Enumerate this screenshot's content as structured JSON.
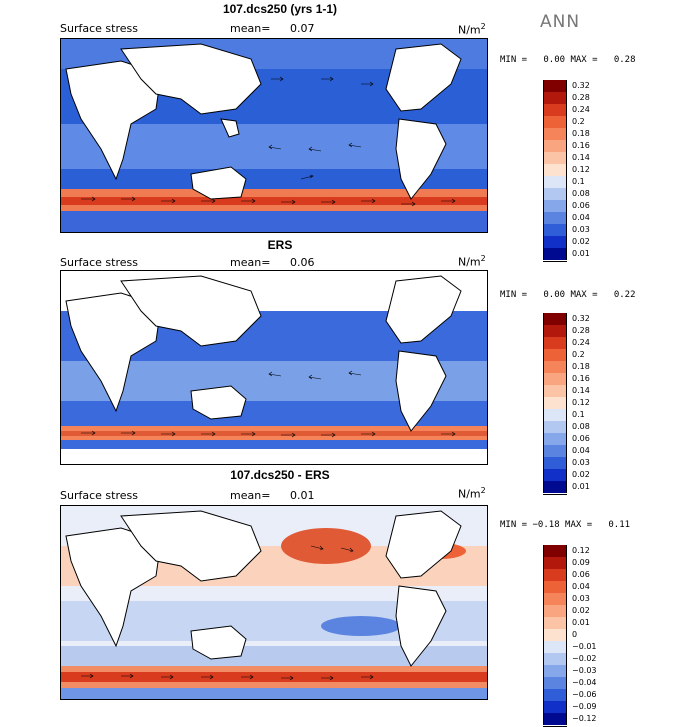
{
  "season": "ANN",
  "panels": [
    {
      "title": "107.dcs250 (yrs 1-1)",
      "variable": "Surface stress",
      "mean_label": "mean=",
      "mean_value": "0.07",
      "units_base": "N/m",
      "units_exp": "2",
      "min_label": "MIN =",
      "min_value": "0.00",
      "max_label": "MAX =",
      "max_value": "0.28",
      "colorbar_levels": [
        "0.32",
        "0.28",
        "0.24",
        "0.2",
        "0.18",
        "0.16",
        "0.14",
        "0.12",
        "0.1",
        "0.08",
        "0.06",
        "0.04",
        "0.03",
        "0.02",
        "0.01"
      ],
      "colorbar_colors": [
        "#800000",
        "#b2180c",
        "#d93b1f",
        "#ee6238",
        "#f5845b",
        "#f9a580",
        "#fbc4a6",
        "#fde3cf",
        "#dde6f7",
        "#b3c8f0",
        "#86a8ea",
        "#5a84e0",
        "#2f5ed8",
        "#1030c8",
        "#000a90"
      ]
    },
    {
      "title": "ERS",
      "variable": "Surface stress",
      "mean_label": "mean=",
      "mean_value": "0.06",
      "units_base": "N/m",
      "units_exp": "2",
      "min_label": "MIN =",
      "min_value": "0.00",
      "max_label": "MAX =",
      "max_value": "0.22",
      "colorbar_levels": [
        "0.32",
        "0.28",
        "0.24",
        "0.2",
        "0.18",
        "0.16",
        "0.14",
        "0.12",
        "0.1",
        "0.08",
        "0.06",
        "0.04",
        "0.03",
        "0.02",
        "0.01"
      ],
      "colorbar_colors": [
        "#800000",
        "#b2180c",
        "#d93b1f",
        "#ee6238",
        "#f5845b",
        "#f9a580",
        "#fbc4a6",
        "#fde3cf",
        "#dde6f7",
        "#b3c8f0",
        "#86a8ea",
        "#5a84e0",
        "#2f5ed8",
        "#1030c8",
        "#000a90"
      ]
    },
    {
      "title": "107.dcs250 - ERS",
      "variable": "Surface stress",
      "mean_label": "mean=",
      "mean_value": "0.01",
      "units_base": "N/m",
      "units_exp": "2",
      "min_label": "MIN =",
      "min_value": "−0.18",
      "max_label": "MAX =",
      "max_value": "0.11",
      "colorbar_levels": [
        "0.12",
        "0.09",
        "0.06",
        "0.04",
        "0.03",
        "0.02",
        "0.01",
        "0",
        "−0.01",
        "−0.02",
        "−0.03",
        "−0.04",
        "−0.06",
        "−0.09",
        "−0.12"
      ],
      "colorbar_colors": [
        "#800000",
        "#b2180c",
        "#d93b1f",
        "#ee6238",
        "#f5845b",
        "#f9a580",
        "#fbc4a6",
        "#fde3cf",
        "#dde6f7",
        "#b3c8f0",
        "#86a8ea",
        "#5a84e0",
        "#2f5ed8",
        "#1030c8",
        "#000a90"
      ]
    }
  ]
}
